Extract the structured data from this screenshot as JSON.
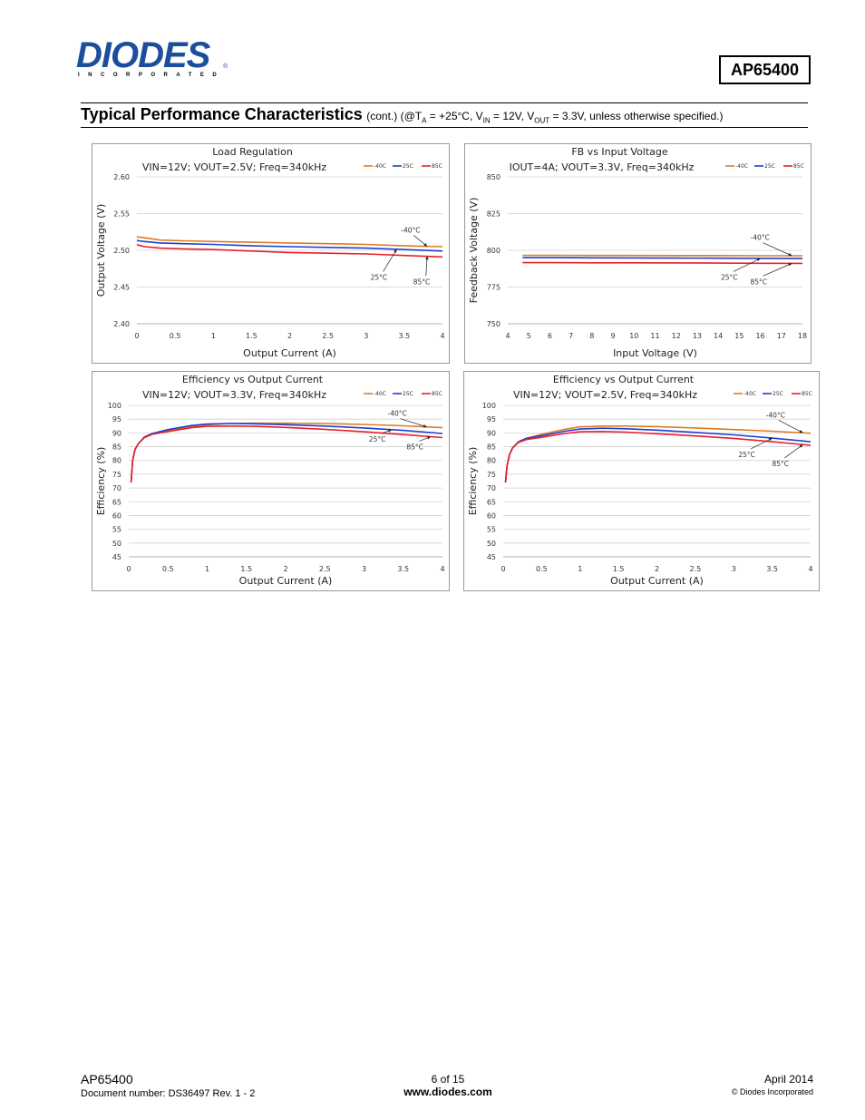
{
  "header": {
    "logo_text": "DIODES",
    "logo_sub": "INCORPORATED",
    "logo_reg": "®",
    "part_number": "AP65400"
  },
  "section": {
    "title": "Typical Performance Characteristics",
    "cond_prefix": "(cont.) (@T",
    "cond_sub1": "A",
    "cond_mid1": " = +25°C, V",
    "cond_sub2": "IN",
    "cond_mid2": " = 12V, V",
    "cond_sub3": "OUT",
    "cond_end": " = 3.3V, unless otherwise specified.)"
  },
  "colors": {
    "m40": "#e07b20",
    "p25": "#1f3fd0",
    "p85": "#e8202a"
  },
  "chart_data": [
    {
      "id": "load-regulation",
      "type": "line",
      "title": "Load Regulation",
      "subtitle": "VIN=12V; VOUT=2.5V; Freq=340kHz",
      "xlabel": "Output Current (A)",
      "ylabel": "Output Voltage (V)",
      "xlim": [
        0,
        4
      ],
      "ylim": [
        2.4,
        2.6
      ],
      "xticks": [
        "0",
        "0.5",
        "1",
        "1.5",
        "2",
        "2.5",
        "3",
        "3.5",
        "4"
      ],
      "yticks": [
        "2.40",
        "2.45",
        "2.50",
        "2.55",
        "2.60"
      ],
      "grid": true,
      "legend": [
        "-40C",
        "25C",
        "85C"
      ],
      "annotations": [
        "-40°C",
        "25°C",
        "85°C"
      ],
      "series": [
        {
          "name": "-40C",
          "x": [
            0,
            0.02,
            0.1,
            0.3,
            0.6,
            1,
            1.5,
            2,
            2.5,
            3,
            3.5,
            4
          ],
          "y": [
            2.519,
            2.518,
            2.517,
            2.514,
            2.513,
            2.512,
            2.511,
            2.51,
            2.509,
            2.508,
            2.506,
            2.505
          ]
        },
        {
          "name": "25C",
          "x": [
            0,
            0.02,
            0.1,
            0.3,
            0.6,
            1,
            1.5,
            2,
            2.5,
            3,
            3.5,
            4
          ],
          "y": [
            2.514,
            2.513,
            2.512,
            2.51,
            2.509,
            2.508,
            2.506,
            2.505,
            2.504,
            2.503,
            2.501,
            2.499
          ]
        },
        {
          "name": "85C",
          "x": [
            0,
            0.02,
            0.1,
            0.3,
            0.6,
            1,
            1.5,
            2,
            2.5,
            3,
            3.5,
            4
          ],
          "y": [
            2.508,
            2.507,
            2.505,
            2.503,
            2.502,
            2.501,
            2.499,
            2.497,
            2.496,
            2.495,
            2.493,
            2.491
          ]
        }
      ]
    },
    {
      "id": "fb-vs-input",
      "type": "line",
      "title": "FB vs Input Voltage",
      "subtitle": "IOUT=4A; VOUT=3.3V, Freq=340kHz",
      "xlabel": "Input Voltage (V)",
      "ylabel": "Feedback Voltage (V)",
      "xlim": [
        4,
        18
      ],
      "ylim": [
        750,
        850
      ],
      "xticks": [
        "4",
        "5",
        "6",
        "7",
        "8",
        "9",
        "10",
        "11",
        "12",
        "13",
        "14",
        "15",
        "16",
        "17",
        "18"
      ],
      "yticks": [
        "750",
        "775",
        "800",
        "825",
        "850"
      ],
      "grid": true,
      "legend": [
        "-40C",
        "25C",
        "85C"
      ],
      "annotations": [
        "-40°C",
        "25°C",
        "85°C"
      ],
      "series": [
        {
          "name": "-40C",
          "x": [
            4.7,
            6,
            8,
            10,
            12,
            14,
            16,
            18
          ],
          "y": [
            796.6,
            796.6,
            796.5,
            796.5,
            796.4,
            796.4,
            796.3,
            796.3
          ]
        },
        {
          "name": "25C",
          "x": [
            4.7,
            6,
            8,
            10,
            12,
            14,
            16,
            18
          ],
          "y": [
            795.0,
            795.0,
            794.9,
            794.8,
            794.7,
            794.6,
            794.5,
            794.4
          ]
        },
        {
          "name": "85C",
          "x": [
            4.7,
            6,
            8,
            10,
            12,
            14,
            16,
            18
          ],
          "y": [
            791.6,
            791.6,
            791.5,
            791.5,
            791.4,
            791.3,
            791.2,
            791.1
          ]
        }
      ]
    },
    {
      "id": "eff-3v3",
      "type": "line",
      "title": "Efficiency vs Output Current",
      "subtitle": "VIN=12V; VOUT=3.3V, Freq=340kHz",
      "xlabel": "Output Current (A)",
      "ylabel": "Efficiency (%)",
      "xlim": [
        0,
        4
      ],
      "ylim": [
        45,
        100
      ],
      "xticks": [
        "0",
        "0.5",
        "1",
        "1.5",
        "2",
        "2.5",
        "3",
        "3.5",
        "4"
      ],
      "yticks": [
        "45",
        "50",
        "55",
        "60",
        "65",
        "70",
        "75",
        "80",
        "85",
        "90",
        "95",
        "100"
      ],
      "grid": true,
      "legend": [
        "-40C",
        "25C",
        "85C"
      ],
      "annotations": [
        "-40°C",
        "25°C",
        "85°C"
      ],
      "series": [
        {
          "name": "-40C",
          "x": [
            0.03,
            0.05,
            0.08,
            0.12,
            0.2,
            0.3,
            0.5,
            0.8,
            1,
            1.3,
            1.6,
            2,
            2.5,
            3,
            3.5,
            4
          ],
          "y": [
            72,
            80,
            84,
            86,
            88.5,
            89.6,
            90.8,
            92.3,
            93,
            93.4,
            93.5,
            93.5,
            93.4,
            93.1,
            92.6,
            91.9
          ]
        },
        {
          "name": "25C",
          "x": [
            0.03,
            0.05,
            0.08,
            0.12,
            0.2,
            0.3,
            0.5,
            0.8,
            1,
            1.3,
            1.6,
            2,
            2.5,
            3,
            3.5,
            4
          ],
          "y": [
            72,
            80,
            84,
            86,
            88.5,
            89.8,
            91.2,
            92.7,
            93.2,
            93.4,
            93.3,
            93.0,
            92.5,
            91.8,
            90.9,
            89.8
          ]
        },
        {
          "name": "85C",
          "x": [
            0.03,
            0.05,
            0.08,
            0.12,
            0.2,
            0.3,
            0.5,
            0.8,
            1,
            1.3,
            1.6,
            2,
            2.5,
            3,
            3.5,
            4
          ],
          "y": [
            72,
            80,
            84,
            86,
            88.3,
            89.5,
            90.5,
            91.9,
            92.4,
            92.5,
            92.4,
            92.0,
            91.3,
            90.4,
            89.4,
            88.3
          ]
        }
      ]
    },
    {
      "id": "eff-2v5",
      "type": "line",
      "title": "Efficiency vs Output Current",
      "subtitle": "VIN=12V; VOUT=2.5V, Freq=340kHz",
      "xlabel": "Output Current (A)",
      "ylabel": "Efficiency (%)",
      "xlim": [
        0,
        4
      ],
      "ylim": [
        45,
        100
      ],
      "xticks": [
        "0",
        "0.5",
        "1",
        "1.5",
        "2",
        "2.5",
        "3",
        "3.5",
        "4"
      ],
      "yticks": [
        "45",
        "50",
        "55",
        "60",
        "65",
        "70",
        "75",
        "80",
        "85",
        "90",
        "95",
        "100"
      ],
      "grid": true,
      "legend": [
        "-40C",
        "25C",
        "85C"
      ],
      "annotations": [
        "-40°C",
        "25°C",
        "85°C"
      ],
      "series": [
        {
          "name": "-40C",
          "x": [
            0.03,
            0.05,
            0.08,
            0.12,
            0.2,
            0.3,
            0.5,
            0.8,
            1,
            1.3,
            1.6,
            2,
            2.5,
            3,
            3.5,
            4
          ],
          "y": [
            72,
            78,
            82,
            84.5,
            86.8,
            88,
            89.5,
            91.3,
            92.2,
            92.5,
            92.5,
            92.3,
            91.8,
            91.2,
            90.6,
            89.9
          ]
        },
        {
          "name": "25C",
          "x": [
            0.03,
            0.05,
            0.08,
            0.12,
            0.2,
            0.3,
            0.5,
            0.8,
            1,
            1.3,
            1.6,
            2,
            2.5,
            3,
            3.5,
            4
          ],
          "y": [
            72,
            78,
            82,
            84.5,
            86.8,
            88,
            89,
            90.6,
            91.4,
            91.7,
            91.5,
            91.0,
            90.2,
            89.3,
            88.1,
            86.8
          ]
        },
        {
          "name": "85C",
          "x": [
            0.03,
            0.05,
            0.08,
            0.12,
            0.2,
            0.3,
            0.5,
            0.8,
            1,
            1.3,
            1.6,
            2,
            2.5,
            3,
            3.5,
            4
          ],
          "y": [
            72,
            78,
            82,
            84.5,
            86.6,
            87.6,
            88.4,
            89.8,
            90.4,
            90.5,
            90.3,
            89.7,
            88.9,
            88.0,
            86.8,
            85.5
          ]
        }
      ]
    }
  ],
  "footer": {
    "part": "AP65400",
    "doc": "Document number: DS36497 Rev. 1 - 2",
    "page": "6 of 15",
    "site": "www.diodes.com",
    "date": "April 2014",
    "copyright": "© Diodes Incorporated"
  }
}
